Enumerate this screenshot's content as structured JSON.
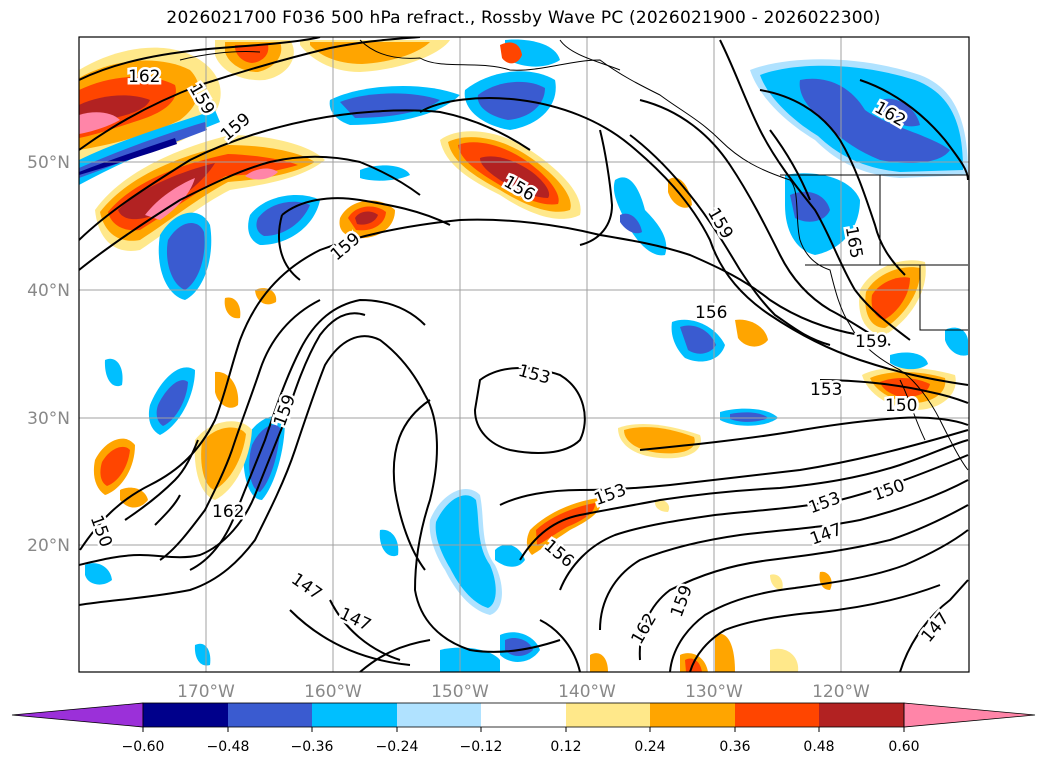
{
  "title": "2026021700 F036 500 hPa refract., Rossby Wave PC (2026021900 - 2026022300)",
  "map": {
    "lon_labels": [
      "170°W",
      "160°W",
      "150°W",
      "140°W",
      "130°W",
      "120°W"
    ],
    "lat_labels": [
      "50°N",
      "40°N",
      "30°N",
      "20°N"
    ],
    "label_color": "#888888",
    "contour_labels": [
      "162",
      "159",
      "159",
      "162",
      "156",
      "159",
      "165",
      "159",
      "156",
      "159",
      "153",
      "153",
      "150",
      "159",
      "162",
      "150",
      "147",
      "147",
      "153",
      "156",
      "153",
      "150",
      "147",
      "159",
      "162",
      "147"
    ]
  },
  "colorbar": {
    "ticks": [
      "−0.60",
      "−0.48",
      "−0.36",
      "−0.24",
      "−0.12",
      "0.12",
      "0.24",
      "0.36",
      "0.48",
      "0.60"
    ],
    "colors": [
      "#9b30d9",
      "#00008b",
      "#3a5bd0",
      "#00bfff",
      "#b0e2ff",
      "#ffffff",
      "#ffe88a",
      "#ffa500",
      "#ff4500",
      "#b22222",
      "#ff85a8"
    ]
  }
}
